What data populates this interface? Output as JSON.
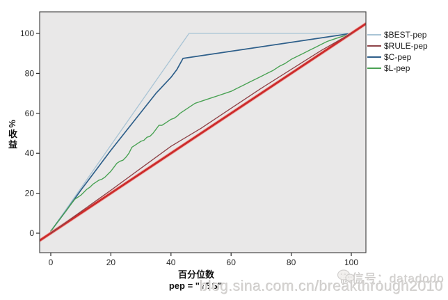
{
  "chart_data": {
    "type": "line",
    "title": "",
    "x_label": "百分位数",
    "y_label": "%收益",
    "footnote": "pep = \"YES\"",
    "x_ticks": [
      0,
      20,
      40,
      60,
      80,
      100
    ],
    "y_ticks": [
      0,
      20,
      40,
      60,
      80,
      100
    ],
    "xlim": [
      -3.7,
      104.9
    ],
    "ylim": [
      -9.8,
      110.9
    ],
    "grid": false,
    "legend_position": "right",
    "plot_bg": "#e9e8e8",
    "border_color": "#4a4a4a",
    "tick_text_color": "#262626",
    "series": [
      {
        "name": "$BEST-pep",
        "color": "#a9c4d5",
        "width": 1.3,
        "points": [
          [
            0,
            1
          ],
          [
            46,
            100
          ],
          [
            100,
            100
          ]
        ]
      },
      {
        "name": "$RULE-pep",
        "color": "#8e4348",
        "width": 1.3,
        "points": [
          [
            0,
            0
          ],
          [
            10,
            10.8
          ],
          [
            20,
            21.5
          ],
          [
            30,
            32.5
          ],
          [
            40,
            43.5
          ],
          [
            50,
            52.5
          ],
          [
            60,
            62.5
          ],
          [
            70,
            72.5
          ],
          [
            80,
            82
          ],
          [
            90,
            91.5
          ],
          [
            100,
            100
          ]
        ]
      },
      {
        "name": "$C-pep",
        "color": "#2e5f8a",
        "width": 1.7,
        "points": [
          [
            0,
            1
          ],
          [
            5,
            11
          ],
          [
            10,
            21.5
          ],
          [
            15,
            31.5
          ],
          [
            20,
            41.5
          ],
          [
            25,
            51
          ],
          [
            30,
            60.5
          ],
          [
            35,
            70
          ],
          [
            40,
            78
          ],
          [
            42,
            82
          ],
          [
            44,
            87.5
          ],
          [
            100,
            100
          ]
        ]
      },
      {
        "name": "$L-pep",
        "color": "#4aa254",
        "width": 1.4,
        "points": [
          [
            0,
            1
          ],
          [
            1,
            3
          ],
          [
            2,
            5
          ],
          [
            3,
            7
          ],
          [
            4,
            9
          ],
          [
            5,
            11
          ],
          [
            6,
            13
          ],
          [
            7,
            15
          ],
          [
            8,
            17
          ],
          [
            9,
            18
          ],
          [
            10,
            19
          ],
          [
            11,
            20.5
          ],
          [
            12,
            22
          ],
          [
            13,
            23
          ],
          [
            14,
            24.5
          ],
          [
            15,
            25.5
          ],
          [
            16,
            26.5
          ],
          [
            17,
            27
          ],
          [
            18,
            28
          ],
          [
            19,
            29.5
          ],
          [
            20,
            31
          ],
          [
            21,
            33
          ],
          [
            22,
            35
          ],
          [
            23,
            36
          ],
          [
            24,
            36.5
          ],
          [
            25,
            38
          ],
          [
            26,
            40
          ],
          [
            27,
            43
          ],
          [
            28,
            44
          ],
          [
            29,
            45
          ],
          [
            30,
            46
          ],
          [
            31,
            46.5
          ],
          [
            32,
            48
          ],
          [
            33,
            48.5
          ],
          [
            34,
            50
          ],
          [
            35,
            52
          ],
          [
            36,
            54
          ],
          [
            37,
            54
          ],
          [
            38,
            55
          ],
          [
            39,
            56
          ],
          [
            40,
            57
          ],
          [
            41,
            57.5
          ],
          [
            42,
            58.5
          ],
          [
            43,
            60
          ],
          [
            44,
            61
          ],
          [
            45,
            62
          ],
          [
            46,
            63
          ],
          [
            47,
            64
          ],
          [
            48,
            65
          ],
          [
            49,
            65.5
          ],
          [
            50,
            66
          ],
          [
            52,
            67
          ],
          [
            54,
            68
          ],
          [
            56,
            69
          ],
          [
            58,
            70
          ],
          [
            60,
            71
          ],
          [
            62,
            72.5
          ],
          [
            64,
            74
          ],
          [
            66,
            75.5
          ],
          [
            68,
            77
          ],
          [
            70,
            78.5
          ],
          [
            72,
            80
          ],
          [
            74,
            81.5
          ],
          [
            76,
            83.5
          ],
          [
            78,
            85
          ],
          [
            80,
            87
          ],
          [
            82,
            88.5
          ],
          [
            84,
            90
          ],
          [
            86,
            91.5
          ],
          [
            88,
            93
          ],
          [
            90,
            94.5
          ],
          [
            92,
            96
          ],
          [
            94,
            97
          ],
          [
            96,
            98
          ],
          [
            98,
            99
          ],
          [
            100,
            100
          ]
        ]
      }
    ],
    "baseline": {
      "name": "diagonal-baseline",
      "color": "#cb2b2b",
      "halo_color": "#f0a8a4",
      "width": 2.8,
      "points": [
        [
          -3.7,
          -3.7
        ],
        [
          104.9,
          104.9
        ]
      ]
    }
  },
  "watermark": {
    "wechat_line": "微信号：datadodo",
    "blog_line": "blog.sina.com.cn/breakthrough2010"
  }
}
